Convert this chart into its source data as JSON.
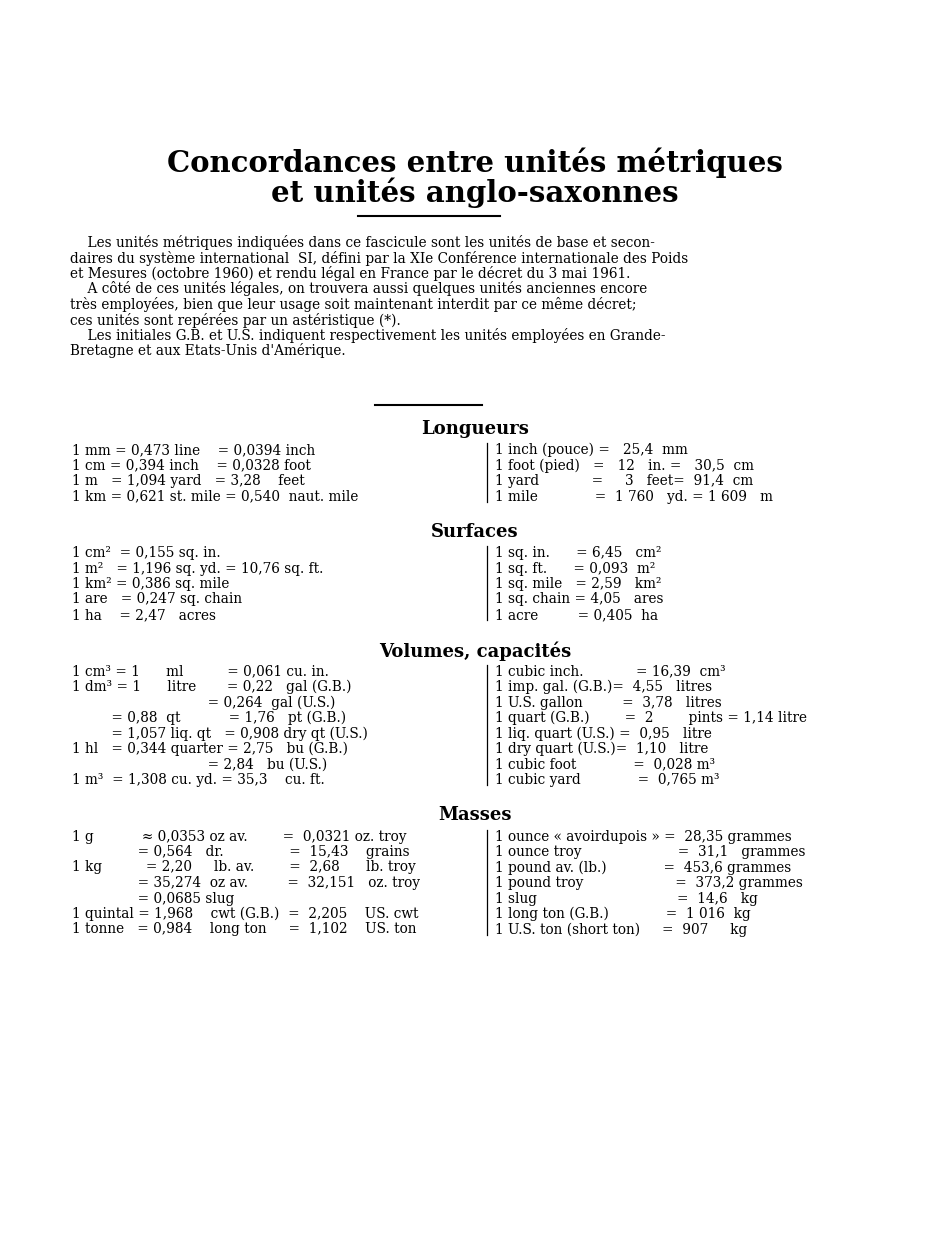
{
  "bg_color": "#ffffff",
  "text_color": "#000000",
  "title_line1": "Concordances entre unités métriques",
  "title_line2": "et unités anglo-saxonnes",
  "intro_lines": [
    "    Les unités métriques indiquées dans ce fascicule sont les unités de base et secon-",
    "daires du système international  SI, défini par la XIe Conférence internationale des Poids",
    "et Mesures (octobre 1960) et rendu légal en France par le décret du 3 mai 1961.",
    "    A côté de ces unités légales, on trouvera aussi quelques unités anciennes encore",
    "très employées, bien que leur usage soit maintenant interdit par ce même décret;",
    "ces unités sont repérées par un astéristique (*).",
    "    Les initiales G.B. et U.S. indiquent respectivement les unités employées en Grande-",
    "Bretagne et aux Etats-Unis d'Amérique."
  ],
  "lon_left": [
    "1 mm = 0,473 line    = 0,0394 inch",
    "1 cm = 0,394 inch    = 0,0328 foot",
    "1 m   = 1,094 yard   = 3,28    feet",
    "1 km = 0,621 st. mile = 0,540  naut. mile"
  ],
  "lon_right": [
    "1 inch (pouce) =   25,4  mm",
    "1 foot (pied)   =   12   in. =   30,5  cm",
    "1 yard            =     3   feet=  91,4  cm",
    "1 mile             =  1 760   yd. = 1 609   m"
  ],
  "surf_left": [
    "1 cm²  = 0,155 sq. in.",
    "1 m²   = 1,196 sq. yd. = 10,76 sq. ft.",
    "1 km² = 0,386 sq. mile",
    "1 are   = 0,247 sq. chain",
    "1 ha    = 2,47   acres"
  ],
  "surf_right": [
    "1 sq. in.      = 6,45   cm²",
    "1 sq. ft.      = 0,093  m²",
    "1 sq. mile   = 2,59   km²",
    "1 sq. chain = 4,05   ares",
    "1 acre         = 0,405  ha"
  ],
  "vol_left": [
    "1 cm³ = 1      ml          = 0,061 cu. in.",
    "1 dm³ = 1      litre       = 0,22   gal (G.B.)",
    "                               = 0,264  gal (U.S.)",
    "         = 0,88  qt           = 1,76   pt (G.B.)",
    "         = 1,057 liq. qt   = 0,908 dry qt (U.S.)",
    "1 hl   = 0,344 quarter = 2,75   bu (G.B.)",
    "                               = 2,84   bu (U.S.)",
    "1 m³  = 1,308 cu. yd. = 35,3    cu. ft."
  ],
  "vol_right": [
    "1 cubic inch.            = 16,39  cm³",
    "1 imp. gal. (G.B.)=  4,55   litres",
    "1 U.S. gallon         =  3,78   litres",
    "1 quart (G.B.)        =  2        pints = 1,14 litre",
    "1 liq. quart (U.S.) =  0,95   litre",
    "1 dry quart (U.S.)=  1,10   litre",
    "1 cubic foot             =  0,028 m³",
    "1 cubic yard             =  0,765 m³"
  ],
  "mas_left": [
    "1 g           ≈ 0,0353 oz av.        =  0,0321 oz. troy",
    "               = 0,564   dr.               =  15,43    grains",
    "1 kg          = 2,20     lb. av.        =  2,68      lb. troy",
    "               = 35,274  oz av.         =  32,151   oz. troy",
    "               = 0,0685 slug",
    "1 quintal = 1,968    cwt (G.B.)  =  2,205    US. cwt",
    "1 tonne   = 0,984    long ton     =  1,102    US. ton"
  ],
  "mas_right": [
    "1 ounce « avoirdupois » =  28,35 grammes",
    "1 ounce troy                      =  31,1   grammes",
    "1 pound av. (lb.)             =  453,6 grammes",
    "1 pound troy                     =  373,2 grammes",
    "1 slug                                =  14,6   kg",
    "1 long ton (G.B.)             =  1 016  kg",
    "1 U.S. ton (short ton)     =  907     kg"
  ]
}
